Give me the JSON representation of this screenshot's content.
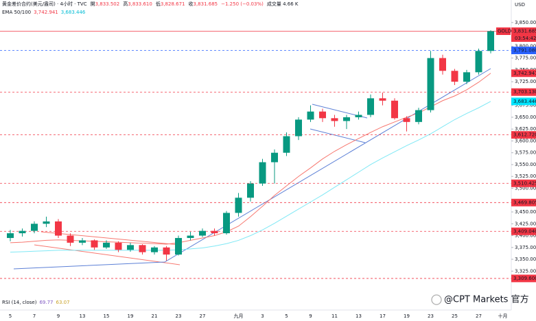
{
  "header": {
    "symbol": "黄金差价合约(美元/盎司) · 4小时 · TVC",
    "ohlc": [
      {
        "key": "開",
        "value": "3,833.502"
      },
      {
        "key": "高",
        "value": "3,833.610"
      },
      {
        "key": "低",
        "value": "3,828.671"
      },
      {
        "key": "收",
        "value": "3,831.685"
      }
    ],
    "change": "−1.250 (−0.03%)",
    "volume": "成交量 4.66 K",
    "ema_title": "EMA 50/100",
    "ema_values": [
      "3,742.941",
      "3,683.446"
    ],
    "rsi_title": "RSI (14, close)",
    "rsi_values": [
      "69.77",
      "63.07"
    ],
    "watermark": "@CPT Markets 官方"
  },
  "chart_data": {
    "type": "candlestick",
    "currency": "USD",
    "symbol_badge": "GOLD",
    "countdown": "03:54:42",
    "categories": [
      "5",
      null,
      "7",
      null,
      "9",
      null,
      "13",
      null,
      "15",
      null,
      "19",
      null,
      "21",
      null,
      "23",
      null,
      "27",
      null,
      null,
      "九月",
      null,
      "3",
      null,
      "5",
      null,
      "9",
      null,
      "11",
      null,
      "13",
      null,
      "17",
      null,
      "19",
      null,
      "23",
      null,
      "25",
      null,
      "27",
      null,
      "十月"
    ],
    "open": [
      3395,
      3405,
      3410,
      3425,
      3430,
      3400,
      3385,
      3390,
      3375,
      3385,
      3370,
      3380,
      3365,
      3375,
      3360,
      3395,
      3400,
      3410,
      3405,
      3448,
      3480,
      3510,
      3555,
      3575,
      3610,
      3645,
      3662,
      3648,
      3642,
      3650,
      3655,
      3690,
      3685,
      3648,
      3640,
      3665,
      3775,
      3748,
      3725,
      3745,
      3790,
      null
    ],
    "high": [
      3412,
      3415,
      3430,
      3440,
      3435,
      3405,
      3395,
      3392,
      3390,
      3388,
      3385,
      3382,
      3378,
      3378,
      3400,
      3408,
      3415,
      3415,
      3452,
      3490,
      3515,
      3562,
      3582,
      3618,
      3650,
      3675,
      3668,
      3655,
      3655,
      3662,
      3698,
      3702,
      3690,
      3652,
      3670,
      3790,
      3782,
      3752,
      3750,
      3795,
      3833.61,
      null
    ],
    "low": [
      3388,
      3398,
      3405,
      3418,
      3395,
      3378,
      3380,
      3370,
      3372,
      3365,
      3366,
      3360,
      3360,
      3347,
      3358,
      3390,
      3397,
      3400,
      3402,
      3440,
      3472,
      3505,
      3510,
      3568,
      3602,
      3640,
      3640,
      3630,
      3625,
      3645,
      3650,
      3675,
      3645,
      3620,
      3635,
      3660,
      3740,
      3718,
      3720,
      3740,
      3785,
      null
    ],
    "close": [
      3405,
      3410,
      3425,
      3430,
      3400,
      3385,
      3390,
      3375,
      3385,
      3370,
      3380,
      3365,
      3375,
      3360,
      3395,
      3400,
      3410,
      3405,
      3448,
      3480,
      3510,
      3555,
      3575,
      3610,
      3645,
      3662,
      3648,
      3642,
      3650,
      3655,
      3690,
      3685,
      3648,
      3640,
      3665,
      3775,
      3748,
      3725,
      3745,
      3790,
      3831.685,
      null
    ],
    "up_color": "#089981",
    "down_color": "#f23645",
    "series": [
      {
        "name": "EMA 50",
        "color": "#f7776f",
        "values": [
          3385,
          3386,
          3388,
          3390,
          3391,
          3390,
          3389,
          3388,
          3387,
          3386,
          3385,
          3384,
          3383,
          3382,
          3385,
          3390,
          3395,
          3400,
          3408,
          3420,
          3440,
          3462,
          3485,
          3505,
          3525,
          3543,
          3562,
          3578,
          3592,
          3605,
          3618,
          3630,
          3640,
          3650,
          3659,
          3672,
          3685,
          3695,
          3708,
          3724,
          3742.941,
          null
        ]
      },
      {
        "name": "EMA 100",
        "color": "#7ee8f5",
        "values": [
          3365,
          3366,
          3367,
          3368,
          3369,
          3369,
          3369,
          3369,
          3369,
          3369,
          3369,
          3369,
          3369,
          3369,
          3370,
          3372,
          3374,
          3378,
          3383,
          3390,
          3400,
          3412,
          3426,
          3441,
          3456,
          3471,
          3486,
          3502,
          3518,
          3534,
          3550,
          3564,
          3577,
          3590,
          3602,
          3615,
          3630,
          3645,
          3658,
          3670,
          3683.446,
          null
        ]
      }
    ],
    "levels": [
      {
        "value": 3831.685,
        "label": "3,831.685",
        "color": "#f23645",
        "style": "solid"
      },
      {
        "value": 3791.08,
        "label": "3,791.080",
        "color": "#2962ff",
        "style": "dashed"
      },
      {
        "value": 3742.941,
        "label": "3,742.941",
        "color": "#f23645",
        "style": "none"
      },
      {
        "value": 3703.13,
        "label": "3,703.130",
        "color": "#f23645",
        "style": "dashed"
      },
      {
        "value": 3683.446,
        "label": "3,683.446",
        "color": "#00e5ff",
        "style": "none"
      },
      {
        "value": 3612.72,
        "label": "3,612.720",
        "color": "#f23645",
        "style": "dashed"
      },
      {
        "value": 3510.425,
        "label": "3,510.425",
        "color": "#f23645",
        "style": "dashed"
      },
      {
        "value": 3469.805,
        "label": "3,469.805",
        "color": "#f23645",
        "style": "dashed"
      },
      {
        "value": 3409.04,
        "label": "3,409.040",
        "color": "#f23645",
        "style": "dashed"
      },
      {
        "value": 3309.6,
        "label": "3,309.600",
        "color": "#f23645",
        "style": "dashed"
      }
    ],
    "ylim": [
      3253,
      3886
    ],
    "yticks": [
      {
        "value": 3850,
        "label": "3,850.000"
      },
      {
        "value": 3800,
        "label": "3,800.000"
      },
      {
        "value": 3775,
        "label": "3,775.000"
      },
      {
        "value": 3750,
        "label": "3,750.000"
      },
      {
        "value": 3725,
        "label": "3,725.000"
      },
      {
        "value": 3675,
        "label": "3,675.000"
      },
      {
        "value": 3650,
        "label": "3,650.000"
      },
      {
        "value": 3625,
        "label": "3,625.000"
      },
      {
        "value": 3600,
        "label": "3,600.000"
      },
      {
        "value": 3575,
        "label": "3,575.000"
      },
      {
        "value": 3550,
        "label": "3,550.000"
      },
      {
        "value": 3525,
        "label": "3,525.000"
      },
      {
        "value": 3500,
        "label": "3,500.000"
      },
      {
        "value": 3450,
        "label": "3,450.000"
      },
      {
        "value": 3425,
        "label": "3,425.000"
      },
      {
        "value": 3400,
        "label": "3,400.000"
      },
      {
        "value": 3375,
        "label": "3,375.000"
      },
      {
        "value": 3350,
        "label": "3,350.000"
      },
      {
        "value": 3325,
        "label": "3,325.000"
      }
    ]
  }
}
